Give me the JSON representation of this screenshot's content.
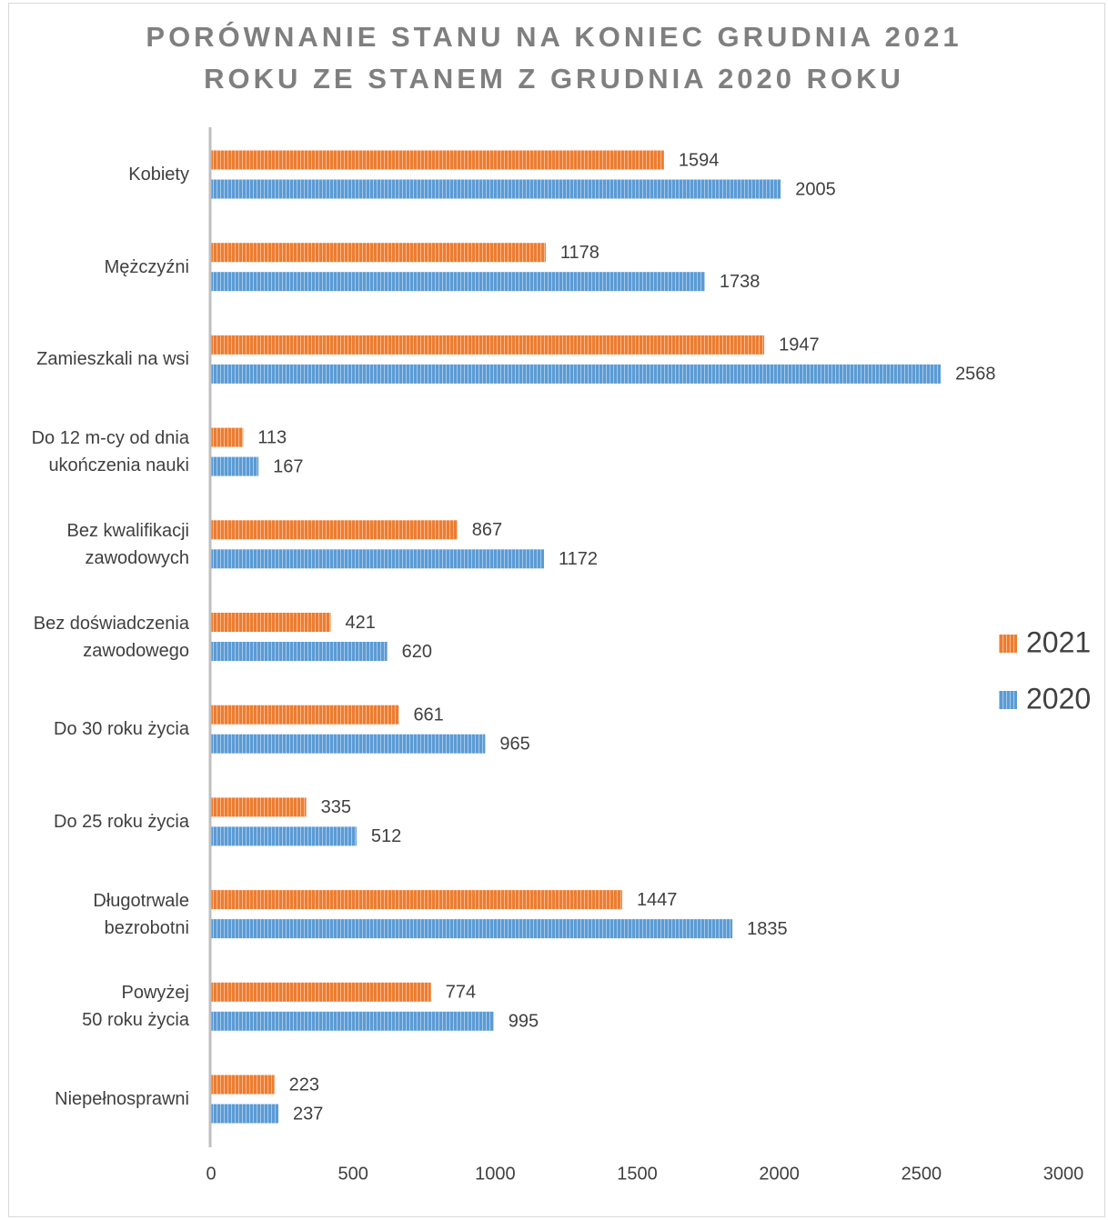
{
  "chart_data": {
    "type": "barh",
    "title": "PORÓWNANIE STANU NA KONIEC GRUDNIA 2021\nROKU ZE STANEM Z GRUDNIA 2020 ROKU",
    "categories": [
      "Kobiety",
      "Mężczyźni",
      "Zamieszkali na wsi",
      "Do 12 m-cy od dnia\nukończenia nauki",
      "Bez kwalifikacji\nzawodowych",
      "Bez doświadczenia\nzawodowego",
      "Do 30 roku życia",
      "Do 25 roku życia",
      "Długotrwale\nbezrobotni",
      "Powyżej\n50 roku życia",
      "Niepełnosprawni"
    ],
    "series": [
      {
        "name": "2021",
        "color": "#ed7d31",
        "values": [
          1594,
          1178,
          1947,
          113,
          867,
          421,
          661,
          335,
          1447,
          774,
          223
        ]
      },
      {
        "name": "2020",
        "color": "#5b9bd5",
        "values": [
          2005,
          1738,
          2568,
          167,
          1172,
          620,
          965,
          512,
          1835,
          995,
          237
        ]
      }
    ],
    "xlim": [
      0,
      3000
    ],
    "xticks": [
      0,
      500,
      1000,
      1500,
      2000,
      2500,
      3000
    ],
    "grid": false,
    "legend": "right"
  }
}
